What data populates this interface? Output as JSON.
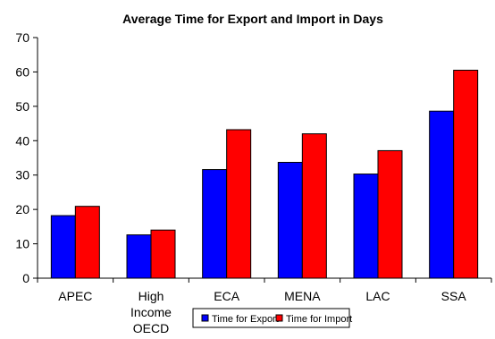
{
  "chart_data": {
    "type": "bar",
    "title": "Average Time for Export and Import in Days",
    "xlabel": "",
    "ylabel": "",
    "ylim": [
      0,
      70
    ],
    "yticks": [
      0,
      10,
      20,
      30,
      40,
      50,
      60,
      70
    ],
    "categories": [
      "APEC",
      "High Income OECD",
      "ECA",
      "MENA",
      "LAC",
      "SSA"
    ],
    "category_lines": [
      [
        "APEC"
      ],
      [
        "High",
        "Income",
        "OECD"
      ],
      [
        "ECA"
      ],
      [
        "MENA"
      ],
      [
        "LAC"
      ],
      [
        "SSA"
      ]
    ],
    "series": [
      {
        "name": "Time for Export",
        "color": "#0000ff",
        "values": [
          18.2,
          12.6,
          31.6,
          33.7,
          30.3,
          48.6
        ]
      },
      {
        "name": "Time for Import",
        "color": "#ff0000",
        "values": [
          20.9,
          14.0,
          43.2,
          42.0,
          37.1,
          60.5
        ]
      }
    ],
    "grid": false,
    "legend_position": "bottom"
  }
}
